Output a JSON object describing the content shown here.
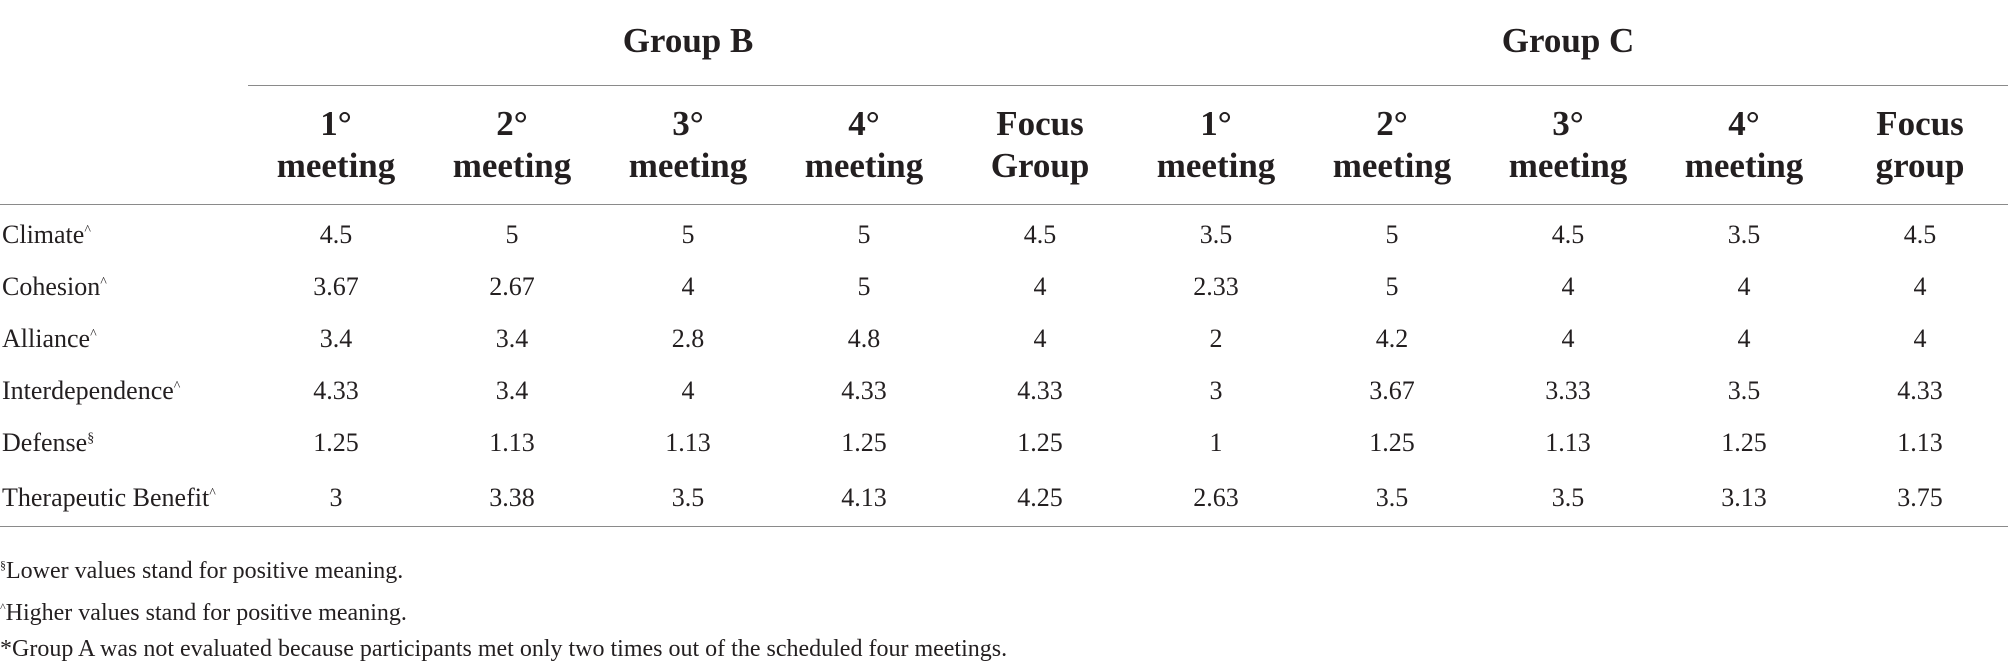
{
  "table": {
    "groups": [
      "Group B",
      "Group C"
    ],
    "subheaders": [
      [
        "1°",
        "meeting"
      ],
      [
        "2°",
        "meeting"
      ],
      [
        "3°",
        "meeting"
      ],
      [
        "4°",
        "meeting"
      ],
      [
        "Focus",
        "Group"
      ],
      [
        "1°",
        "meeting"
      ],
      [
        "2°",
        "meeting"
      ],
      [
        "3°",
        "meeting"
      ],
      [
        "4°",
        "meeting"
      ],
      [
        "Focus",
        "group"
      ]
    ],
    "rows": [
      {
        "label": "Climate",
        "mark": "^",
        "values": [
          "4.5",
          "5",
          "5",
          "5",
          "4.5",
          "3.5",
          "5",
          "4.5",
          "3.5",
          "4.5"
        ]
      },
      {
        "label": "Cohesion",
        "mark": "^",
        "values": [
          "3.67",
          "2.67",
          "4",
          "5",
          "4",
          "2.33",
          "5",
          "4",
          "4",
          "4"
        ]
      },
      {
        "label": "Alliance",
        "mark": "^",
        "values": [
          "3.4",
          "3.4",
          "2.8",
          "4.8",
          "4",
          "2",
          "4.2",
          "4",
          "4",
          "4"
        ]
      },
      {
        "label": "Interdependence",
        "mark": "^",
        "values": [
          "4.33",
          "3.4",
          "4",
          "4.33",
          "4.33",
          "3",
          "3.67",
          "3.33",
          "3.5",
          "4.33"
        ]
      },
      {
        "label": "Defense",
        "mark": "§",
        "values": [
          "1.25",
          "1.13",
          "1.13",
          "1.25",
          "1.25",
          "1",
          "1.25",
          "1.13",
          "1.25",
          "1.13"
        ]
      },
      {
        "label": "Therapeutic Benefit",
        "mark": "^",
        "values": [
          "3",
          "3.38",
          "3.5",
          "4.13",
          "4.25",
          "2.63",
          "3.5",
          "3.5",
          "3.13",
          "3.75"
        ]
      }
    ]
  },
  "notes": [
    {
      "mark": "§",
      "text": "Lower values stand for positive meaning."
    },
    {
      "mark": "^",
      "text": "Higher values stand for positive meaning."
    },
    {
      "mark": "",
      "text": "*Group A was not evaluated because participants met only two times out of the scheduled four meetings."
    }
  ]
}
